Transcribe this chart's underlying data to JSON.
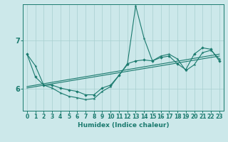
{
  "xlabel": "Humidex (Indice chaleur)",
  "bg_color": "#cce8ea",
  "line_color": "#1a7a6e",
  "grid_color": "#a8cfd0",
  "xlim": [
    -0.5,
    23.5
  ],
  "ylim": [
    5.55,
    7.75
  ],
  "yticks": [
    6,
    7
  ],
  "xticks": [
    0,
    1,
    2,
    3,
    4,
    5,
    6,
    7,
    8,
    9,
    10,
    11,
    12,
    13,
    14,
    15,
    16,
    17,
    18,
    19,
    20,
    21,
    22,
    23
  ],
  "line1_x": [
    0,
    1,
    2,
    3,
    4,
    5,
    6,
    7,
    8,
    9,
    10,
    11,
    12,
    13,
    14,
    15,
    16,
    17,
    18,
    19,
    20,
    21,
    22,
    23
  ],
  "line1_y": [
    6.72,
    6.48,
    6.08,
    6.02,
    5.92,
    5.85,
    5.82,
    5.78,
    5.8,
    5.95,
    6.05,
    6.28,
    6.5,
    7.72,
    7.05,
    6.58,
    6.68,
    6.72,
    6.62,
    6.38,
    6.5,
    6.75,
    6.8,
    6.62
  ],
  "line2_x": [
    0,
    1,
    2,
    3,
    4,
    5,
    6,
    7,
    8,
    9,
    10,
    11,
    12,
    13,
    14,
    15,
    16,
    17,
    18,
    19,
    20,
    21,
    22,
    23
  ],
  "line2_y": [
    6.72,
    6.25,
    6.08,
    6.08,
    6.02,
    5.98,
    5.95,
    5.88,
    5.88,
    6.02,
    6.08,
    6.28,
    6.52,
    6.58,
    6.6,
    6.58,
    6.65,
    6.68,
    6.52,
    6.4,
    6.72,
    6.85,
    6.82,
    6.58
  ],
  "line3_x": [
    0,
    23
  ],
  "line3_y": [
    6.02,
    6.68
  ],
  "line4_x": [
    0,
    23
  ],
  "line4_y": [
    6.05,
    6.72
  ]
}
